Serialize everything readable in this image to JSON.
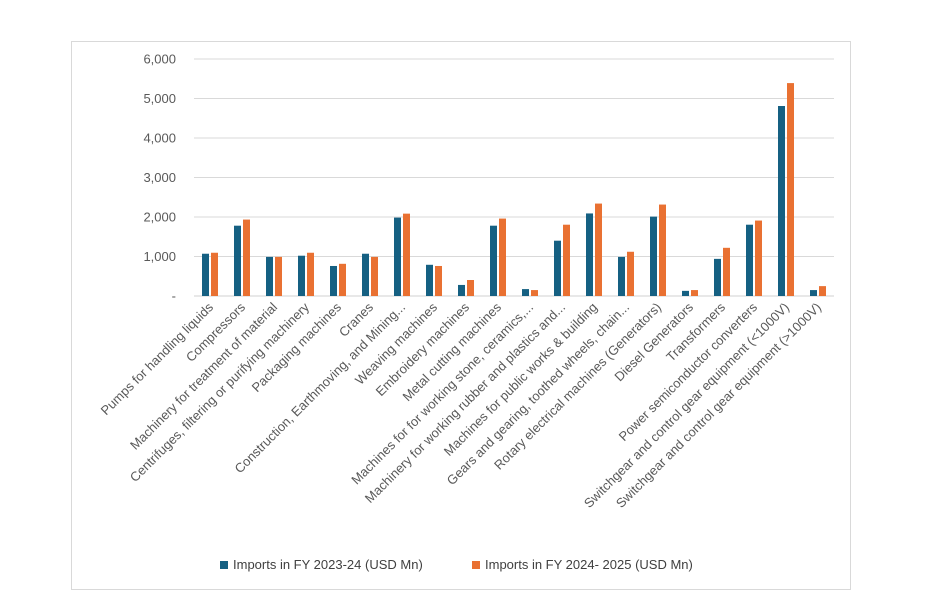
{
  "chart_data": {
    "type": "bar",
    "title": "",
    "xlabel": "",
    "ylabel": "",
    "ylim": [
      0,
      6000
    ],
    "yticks": [
      0,
      1000,
      2000,
      3000,
      4000,
      5000,
      6000
    ],
    "ytick_labels": [
      "-",
      "1,000",
      "2,000",
      "3,000",
      "4,000",
      "5,000",
      "6,000"
    ],
    "grid": true,
    "legend_position": "bottom",
    "categories": [
      "Pumps for handling liquids",
      "Compressors",
      "Machinery for treatment of material",
      "Centrifuges, filtering or purifying machinery",
      "Packaging machines",
      "Cranes",
      "Construction, Earthmoving, and Mining...",
      "Weaving machines",
      "Embroidery machines",
      "Metal cutting machines",
      "Machines for for working stone, ceramics,...",
      "Machinery for working rubber and plastics and...",
      "Machines for public works &  building",
      "Gears and gearing, toothed wheels, chain...",
      "Rotary electrical machines (Generators)",
      "Diesel Generators",
      "Transformers",
      "Power semiconductor converters",
      "Switchgear and control gear equipment (<1000V)",
      "Switchgear and control gear equipment (>1000V)"
    ],
    "series": [
      {
        "name": "Imports in FY 2023-24 (USD Mn)",
        "color": "#156082",
        "values": [
          1070,
          1780,
          990,
          1020,
          760,
          1070,
          1985,
          790,
          280,
          1780,
          175,
          1400,
          2090,
          990,
          2010,
          130,
          940,
          1805,
          4810,
          150
        ]
      },
      {
        "name": "Imports in FY 2024- 2025 (USD Mn)",
        "color": "#E97132",
        "values": [
          1095,
          1935,
          990,
          1095,
          815,
          990,
          2085,
          760,
          405,
          1960,
          150,
          1805,
          2340,
          1120,
          2315,
          150,
          1220,
          1910,
          5390,
          250
        ]
      }
    ]
  }
}
